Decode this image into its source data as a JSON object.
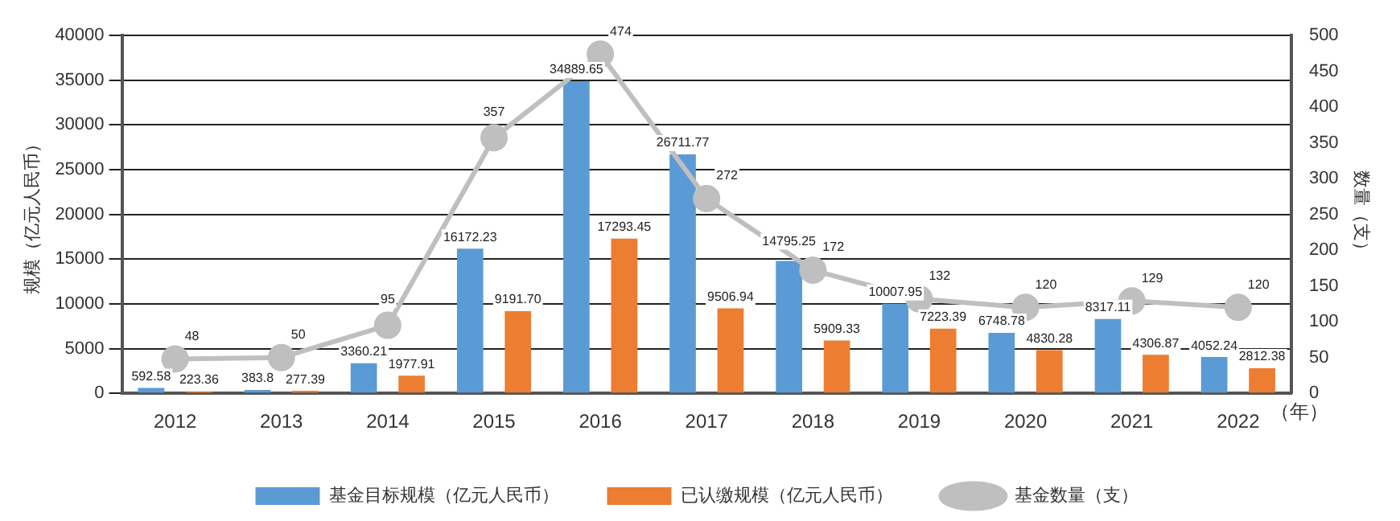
{
  "chart_data": {
    "type": "bar",
    "categories": [
      "2012",
      "2013",
      "2014",
      "2015",
      "2016",
      "2017",
      "2018",
      "2019",
      "2020",
      "2021",
      "2022"
    ],
    "xlabel": "（年）",
    "ylabel": "规模（亿元人民币）",
    "y2label": "数量（支）",
    "ylim": [
      0,
      40000
    ],
    "yticks": [
      0,
      5000,
      10000,
      15000,
      20000,
      25000,
      30000,
      35000,
      40000
    ],
    "y2lim": [
      0,
      500
    ],
    "y2ticks": [
      0,
      50,
      100,
      150,
      200,
      250,
      300,
      350,
      400,
      450,
      500
    ],
    "grid": "y",
    "legend": "bottom",
    "series": [
      {
        "name": "基金目标规模（亿元人民币）",
        "color": "#5b9bd5",
        "values": [
          592.58,
          383.8,
          3360.21,
          16172.23,
          34889.65,
          26711.77,
          14795.25,
          10007.95,
          6748.78,
          8317.11,
          4052.24
        ],
        "value_labels": [
          "592.58",
          "383.8",
          "3360.21",
          "16172.23",
          "34889.65",
          "26711.77",
          "14795.25",
          "10007.95",
          "6748.78",
          "8317.11",
          "4052.24"
        ]
      },
      {
        "name": "已认缴规模（亿元人民币）",
        "color": "#ed7d31",
        "values": [
          223.36,
          277.39,
          1977.91,
          9191.7,
          17293.45,
          9506.94,
          5909.33,
          7223.39,
          4830.28,
          4306.87,
          2812.38
        ],
        "value_labels": [
          "223.36",
          "277.39",
          "1977.91",
          "9191.70",
          "17293.45",
          "9506.94",
          "5909.33",
          "7223.39",
          "4830.28",
          "4306.87",
          "2812.38"
        ]
      },
      {
        "name": "基金数量（支）",
        "type": "line",
        "axis": "y2",
        "color": "#bfbfbf",
        "marker": "circle",
        "values": [
          48,
          50,
          95,
          357,
          474,
          272,
          172,
          132,
          120,
          129,
          120
        ],
        "value_labels": [
          "48",
          "50",
          "95",
          "357",
          "474",
          "272",
          "172",
          "132",
          "120",
          "129",
          "120"
        ]
      }
    ]
  }
}
